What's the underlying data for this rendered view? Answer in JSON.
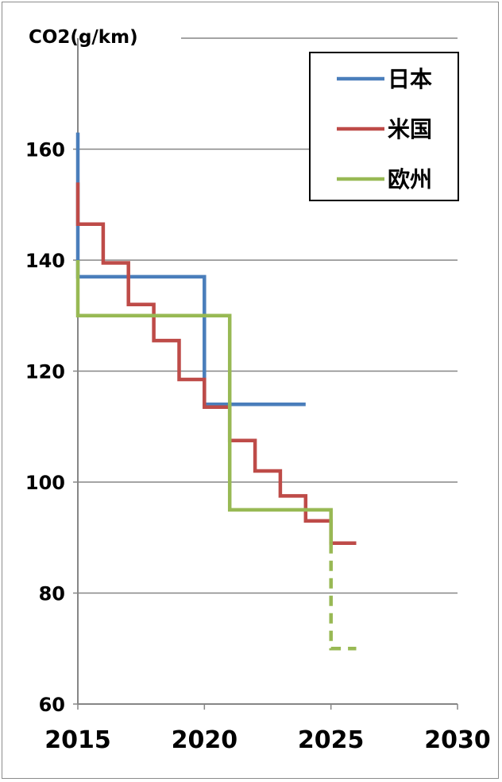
{
  "chart_data": {
    "type": "line",
    "title": "",
    "ylabel": "CO2(g/km)",
    "xlabel": "",
    "xlim": [
      2015,
      2030
    ],
    "ylim": [
      60,
      180
    ],
    "x_ticks": [
      "2015",
      "2020",
      "2025",
      "2030"
    ],
    "y_ticks": [
      "60",
      "80",
      "100",
      "120",
      "140",
      "160"
    ],
    "grid": "horizontal",
    "legend_position": "top-right",
    "series": [
      {
        "name": "日本",
        "color": "#4a7ebb",
        "points": [
          [
            2015,
            163
          ],
          [
            2015,
            137
          ],
          [
            2020,
            137
          ],
          [
            2020,
            114
          ],
          [
            2024,
            114
          ]
        ]
      },
      {
        "name": "米国",
        "color": "#be4b48",
        "points": [
          [
            2015,
            154
          ],
          [
            2015,
            146.5
          ],
          [
            2016,
            146.5
          ],
          [
            2016,
            139.5
          ],
          [
            2017,
            139.5
          ],
          [
            2017,
            132
          ],
          [
            2018,
            132
          ],
          [
            2018,
            125.5
          ],
          [
            2019,
            125.5
          ],
          [
            2019,
            118.5
          ],
          [
            2020,
            118.5
          ],
          [
            2020,
            113.5
          ],
          [
            2021,
            113.5
          ],
          [
            2021,
            107.5
          ],
          [
            2022,
            107.5
          ],
          [
            2022,
            102
          ],
          [
            2023,
            102
          ],
          [
            2023,
            97.5
          ],
          [
            2024,
            97.5
          ],
          [
            2024,
            93
          ],
          [
            2025,
            93
          ],
          [
            2025,
            89
          ],
          [
            2026,
            89
          ]
        ]
      },
      {
        "name": "欧州",
        "color": "#98b954",
        "points": [
          [
            2015,
            140
          ],
          [
            2015,
            130
          ],
          [
            2021,
            130
          ],
          [
            2021,
            95
          ],
          [
            2025,
            95
          ],
          [
            2025,
            89
          ]
        ],
        "projection": [
          [
            2025,
            89
          ],
          [
            2025,
            70
          ],
          [
            2026,
            70
          ]
        ]
      }
    ]
  }
}
